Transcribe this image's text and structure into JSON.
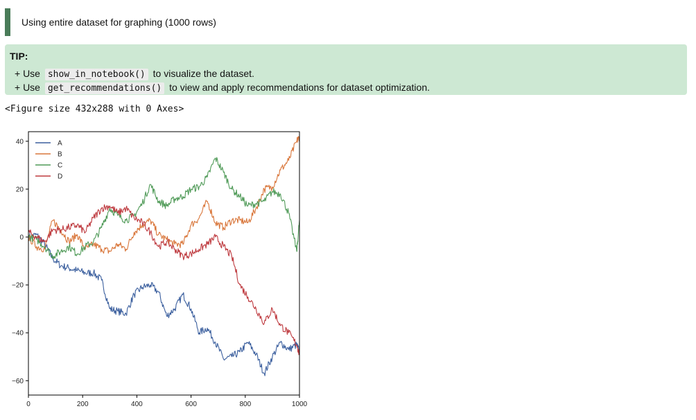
{
  "banner": {
    "text": "Using entire dataset for graphing (1000 rows)"
  },
  "tip": {
    "title": "TIP:",
    "lines": [
      {
        "prefix": "+ Use",
        "code": "show_in_notebook()",
        "suffix": "to visualize the dataset."
      },
      {
        "prefix": "+ Use",
        "code": "get_recommendations()",
        "suffix": "to view and apply recommendations for dataset optimization."
      }
    ]
  },
  "figure_output": "<Figure size 432x288 with 0 Axes>",
  "colors": {
    "A": "#3b5f9e",
    "B": "#d9763a",
    "C": "#4f9a57",
    "D": "#be3a3f",
    "banner_accent": "#4a7c59",
    "tip_bg": "#cde8d3"
  },
  "chart_data": {
    "type": "line",
    "title": "",
    "xlabel": "",
    "ylabel": "",
    "xlim": [
      0,
      1000
    ],
    "ylim": [
      -66,
      44
    ],
    "xticks": [
      0,
      200,
      400,
      600,
      800,
      1000
    ],
    "yticks": [
      40,
      20,
      0,
      -20,
      -40,
      -60
    ],
    "grid": false,
    "legend": "top-left",
    "series": [
      {
        "name": "A",
        "x": [
          0,
          30,
          60,
          90,
          120,
          150,
          180,
          210,
          240,
          270,
          300,
          330,
          360,
          390,
          420,
          450,
          480,
          510,
          540,
          570,
          600,
          630,
          660,
          690,
          720,
          750,
          780,
          810,
          840,
          870,
          900,
          930,
          960,
          990,
          1000
        ],
        "y": [
          0,
          1,
          -3,
          -9,
          -12,
          -13,
          -14,
          -15,
          -15,
          -18,
          -30,
          -31,
          -32,
          -24,
          -21,
          -20,
          -23,
          -33,
          -30,
          -24,
          -30,
          -40,
          -38,
          -44,
          -51,
          -50,
          -48,
          -44,
          -49,
          -57,
          -50,
          -44,
          -47,
          -45,
          -48
        ]
      },
      {
        "name": "B",
        "x": [
          0,
          30,
          60,
          90,
          120,
          150,
          180,
          210,
          240,
          270,
          300,
          330,
          360,
          390,
          420,
          450,
          480,
          510,
          540,
          570,
          600,
          630,
          660,
          690,
          720,
          750,
          780,
          810,
          840,
          870,
          900,
          930,
          960,
          990,
          1000
        ],
        "y": [
          0,
          -4,
          -5,
          7,
          3,
          -2,
          1,
          -5,
          -3,
          -5,
          -6,
          -3,
          -5,
          2,
          5,
          7,
          1,
          -1,
          -3,
          -3,
          5,
          8,
          15,
          6,
          4,
          7,
          7,
          6,
          12,
          20,
          21,
          28,
          32,
          40,
          42
        ]
      },
      {
        "name": "C",
        "x": [
          0,
          30,
          60,
          90,
          120,
          150,
          180,
          210,
          240,
          270,
          300,
          330,
          360,
          390,
          420,
          450,
          480,
          510,
          540,
          570,
          600,
          630,
          660,
          690,
          720,
          750,
          780,
          810,
          840,
          870,
          900,
          930,
          960,
          990,
          1000
        ],
        "y": [
          0,
          -1,
          -4,
          -8,
          -6,
          -4,
          -7,
          -4,
          -2,
          4,
          12,
          9,
          7,
          9,
          14,
          22,
          15,
          13,
          16,
          17,
          20,
          21,
          25,
          33,
          27,
          20,
          17,
          13,
          14,
          15,
          19,
          18,
          10,
          -6,
          7
        ]
      },
      {
        "name": "D",
        "x": [
          0,
          30,
          60,
          90,
          120,
          150,
          180,
          210,
          240,
          270,
          300,
          330,
          360,
          390,
          420,
          450,
          480,
          510,
          540,
          570,
          600,
          630,
          660,
          690,
          720,
          750,
          780,
          810,
          840,
          870,
          900,
          930,
          960,
          990,
          1000
        ],
        "y": [
          2,
          0,
          -2,
          3,
          3,
          4,
          5,
          2,
          8,
          12,
          13,
          10,
          12,
          8,
          6,
          2,
          -4,
          -2,
          -5,
          -8,
          -7,
          -5,
          -3,
          0,
          -4,
          -8,
          -20,
          -25,
          -30,
          -36,
          -30,
          -37,
          -40,
          -45,
          -49
        ]
      }
    ]
  }
}
